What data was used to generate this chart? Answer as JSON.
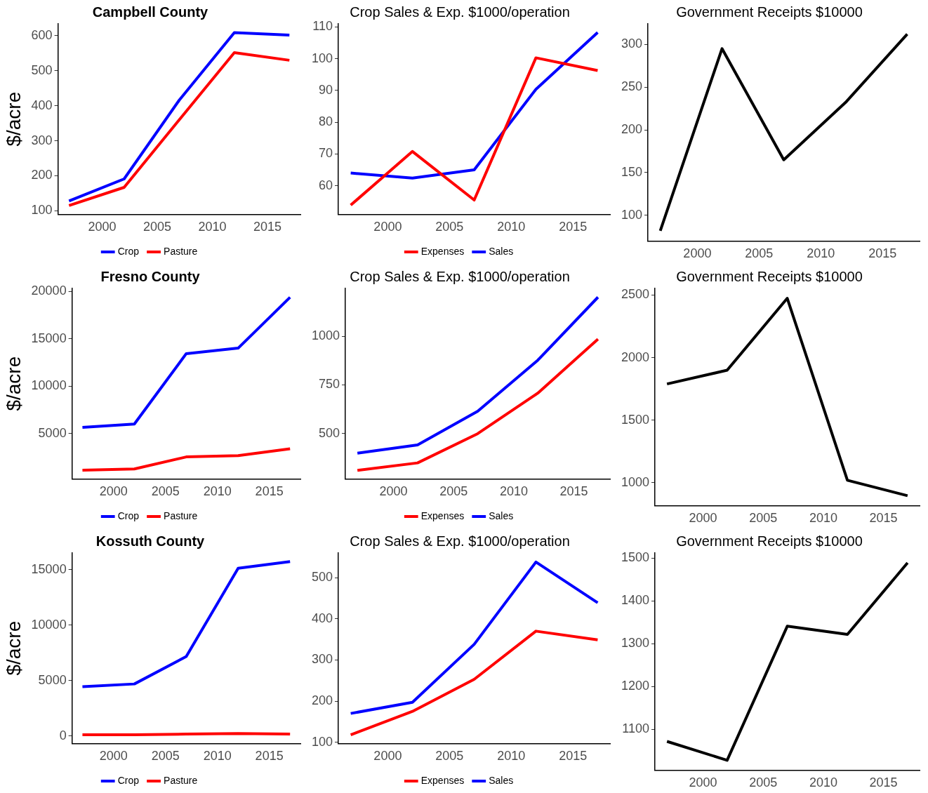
{
  "chart_data": [
    {
      "type": "line",
      "title": "Campbell County",
      "ylabel": "$/acre",
      "x": [
        1997,
        2002,
        2007,
        2012,
        2017
      ],
      "xlim": [
        1996,
        2018
      ],
      "xticks": [
        2000,
        2005,
        2010,
        2015
      ],
      "ylim": [
        90,
        634
      ],
      "yticks": [
        100,
        200,
        300,
        400,
        500,
        600
      ],
      "legend": "bottom",
      "grid": false,
      "series": [
        {
          "name": "Crop",
          "color": "#0000ff",
          "values": [
            128,
            191,
            416,
            609,
            602
          ]
        },
        {
          "name": "Pasture",
          "color": "#ff0000",
          "values": [
            115,
            167,
            360,
            552,
            530
          ]
        }
      ]
    },
    {
      "type": "line",
      "title": "Crop Sales & Exp. $1000/operation",
      "x": [
        1997,
        2002,
        2007,
        2012,
        2017
      ],
      "xlim": [
        1996,
        2018
      ],
      "xticks": [
        2000,
        2005,
        2010,
        2015
      ],
      "ylim": [
        51,
        111
      ],
      "yticks": [
        60,
        70,
        80,
        90,
        100,
        110
      ],
      "legend": "bottom",
      "grid": false,
      "series": [
        {
          "name": "Expenses",
          "color": "#ff0000",
          "values": [
            53.9,
            70.8,
            55.5,
            100.3,
            96.3
          ]
        },
        {
          "name": "Sales",
          "color": "#0000ff",
          "values": [
            64,
            62.4,
            65,
            90.4,
            108.3
          ]
        }
      ]
    },
    {
      "type": "line",
      "title": "Government Receipts $10000",
      "x": [
        1997,
        2002,
        2007,
        2012,
        2017
      ],
      "xlim": [
        1996,
        2018
      ],
      "xticks": [
        2000,
        2005,
        2010,
        2015
      ],
      "ylim": [
        70,
        324
      ],
      "yticks": [
        100,
        150,
        200,
        250,
        300
      ],
      "legend": false,
      "grid": false,
      "series": [
        {
          "color": "#000000",
          "values": [
            82,
            295,
            165,
            232,
            312
          ]
        }
      ]
    },
    {
      "type": "line",
      "title": "Fresno County",
      "ylabel": "$/acre",
      "x": [
        1997,
        2002,
        2007,
        2012,
        2017
      ],
      "xlim": [
        1996,
        2018
      ],
      "xticks": [
        2000,
        2005,
        2010,
        2015
      ],
      "ylim": [
        200,
        20300
      ],
      "yticks": [
        5000,
        10000,
        15000,
        20000
      ],
      "legend": "bottom",
      "grid": false,
      "series": [
        {
          "name": "Crop",
          "color": "#0000ff",
          "values": [
            5640,
            5990,
            13420,
            14000,
            19370
          ]
        },
        {
          "name": "Pasture",
          "color": "#ff0000",
          "values": [
            1110,
            1250,
            2520,
            2660,
            3370
          ]
        }
      ]
    },
    {
      "type": "line",
      "title": "Crop Sales & Exp. $1000/operation",
      "x": [
        1997,
        2002,
        2007,
        2012,
        2017
      ],
      "xlim": [
        1996,
        2018
      ],
      "xticks": [
        2000,
        2005,
        2010,
        2015
      ],
      "ylim": [
        268,
        1245
      ],
      "yticks": [
        500,
        750,
        1000
      ],
      "legend": "bottom",
      "grid": false,
      "series": [
        {
          "name": "Expenses",
          "color": "#ff0000",
          "values": [
            312,
            350,
            500,
            708,
            985
          ]
        },
        {
          "name": "Sales",
          "color": "#0000ff",
          "values": [
            400,
            442,
            615,
            877,
            1200
          ]
        }
      ]
    },
    {
      "type": "line",
      "title": "Government Receipts $10000",
      "x": [
        1997,
        2002,
        2007,
        2012,
        2017
      ],
      "xlim": [
        1996,
        2018
      ],
      "xticks": [
        2000,
        2005,
        2010,
        2015
      ],
      "ylim": [
        817,
        2553
      ],
      "yticks": [
        1000,
        1500,
        2000,
        2500
      ],
      "legend": false,
      "grid": false,
      "series": [
        {
          "color": "#000000",
          "values": [
            1789,
            1899,
            2474,
            1019,
            896
          ]
        }
      ]
    },
    {
      "type": "line",
      "title": "Kossuth County",
      "ylabel": "$/acre",
      "x": [
        1997,
        2002,
        2007,
        2012,
        2017
      ],
      "xlim": [
        1996,
        2018
      ],
      "xticks": [
        2000,
        2005,
        2010,
        2015
      ],
      "ylim": [
        -660,
        16500
      ],
      "yticks": [
        0,
        5000,
        10000,
        15000
      ],
      "legend": "bottom",
      "grid": false,
      "series": [
        {
          "name": "Crop",
          "color": "#0000ff",
          "values": [
            4460,
            4700,
            7170,
            15120,
            15720
          ]
        },
        {
          "name": "Pasture",
          "color": "#ff0000",
          "values": [
            120,
            120,
            180,
            240,
            180
          ]
        }
      ]
    },
    {
      "type": "line",
      "title": "Crop Sales & Exp. $1000/operation",
      "x": [
        1997,
        2002,
        2007,
        2012,
        2017
      ],
      "xlim": [
        1996,
        2018
      ],
      "xticks": [
        2000,
        2005,
        2010,
        2015
      ],
      "ylim": [
        97,
        560
      ],
      "yticks": [
        100,
        200,
        300,
        400,
        500
      ],
      "legend": "bottom",
      "grid": false,
      "series": [
        {
          "name": "Expenses",
          "color": "#ff0000",
          "values": [
            118,
            175,
            253,
            370,
            349
          ]
        },
        {
          "name": "Sales",
          "color": "#0000ff",
          "values": [
            170,
            197,
            338,
            538,
            439
          ]
        }
      ]
    },
    {
      "type": "line",
      "title": "Government Receipts $10000",
      "x": [
        1997,
        2002,
        2007,
        2012,
        2017
      ],
      "xlim": [
        1996,
        2018
      ],
      "xticks": [
        2000,
        2005,
        2010,
        2015
      ],
      "ylim": [
        1005,
        1512
      ],
      "yticks": [
        1100,
        1200,
        1300,
        1400,
        1500
      ],
      "legend": false,
      "grid": false,
      "series": [
        {
          "color": "#000000",
          "values": [
            1072,
            1028,
            1341,
            1322,
            1489
          ]
        }
      ]
    }
  ]
}
